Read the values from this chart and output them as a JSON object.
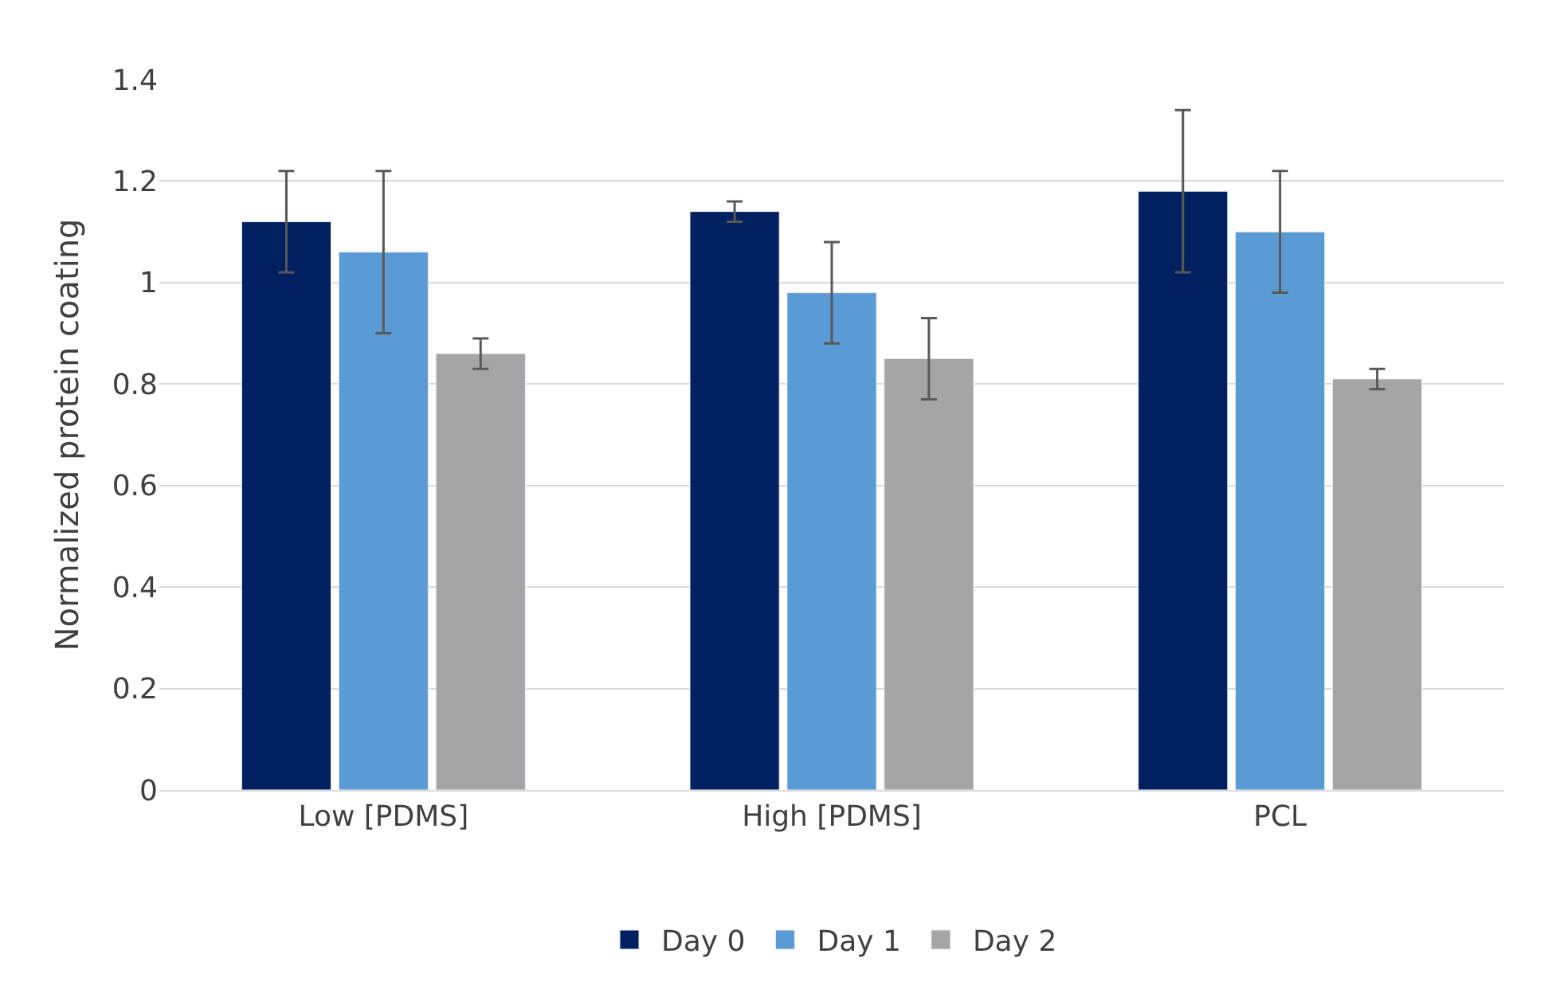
{
  "chart_data": {
    "type": "bar",
    "ylabel": "Normalized protein coating",
    "categories": [
      "Low [PDMS]",
      "High [PDMS]",
      "PCL"
    ],
    "series": [
      {
        "name": "Day 0",
        "color": "#002060",
        "values": [
          1.12,
          1.14,
          1.18
        ],
        "errors": [
          0.1,
          0.02,
          0.16
        ]
      },
      {
        "name": "Day 1",
        "color": "#5b9bd5",
        "values": [
          1.06,
          0.98,
          1.1
        ],
        "errors": [
          0.16,
          0.1,
          0.12
        ]
      },
      {
        "name": "Day 2",
        "color": "#a5a5a5",
        "values": [
          0.86,
          0.85,
          0.81
        ],
        "errors": [
          0.03,
          0.08,
          0.02
        ]
      }
    ],
    "ylim": [
      0,
      1.4
    ],
    "yticks": [
      0,
      0.2,
      0.4,
      0.6,
      0.8,
      1,
      1.2,
      1.4
    ],
    "grid": "y",
    "legend": "bottom"
  }
}
